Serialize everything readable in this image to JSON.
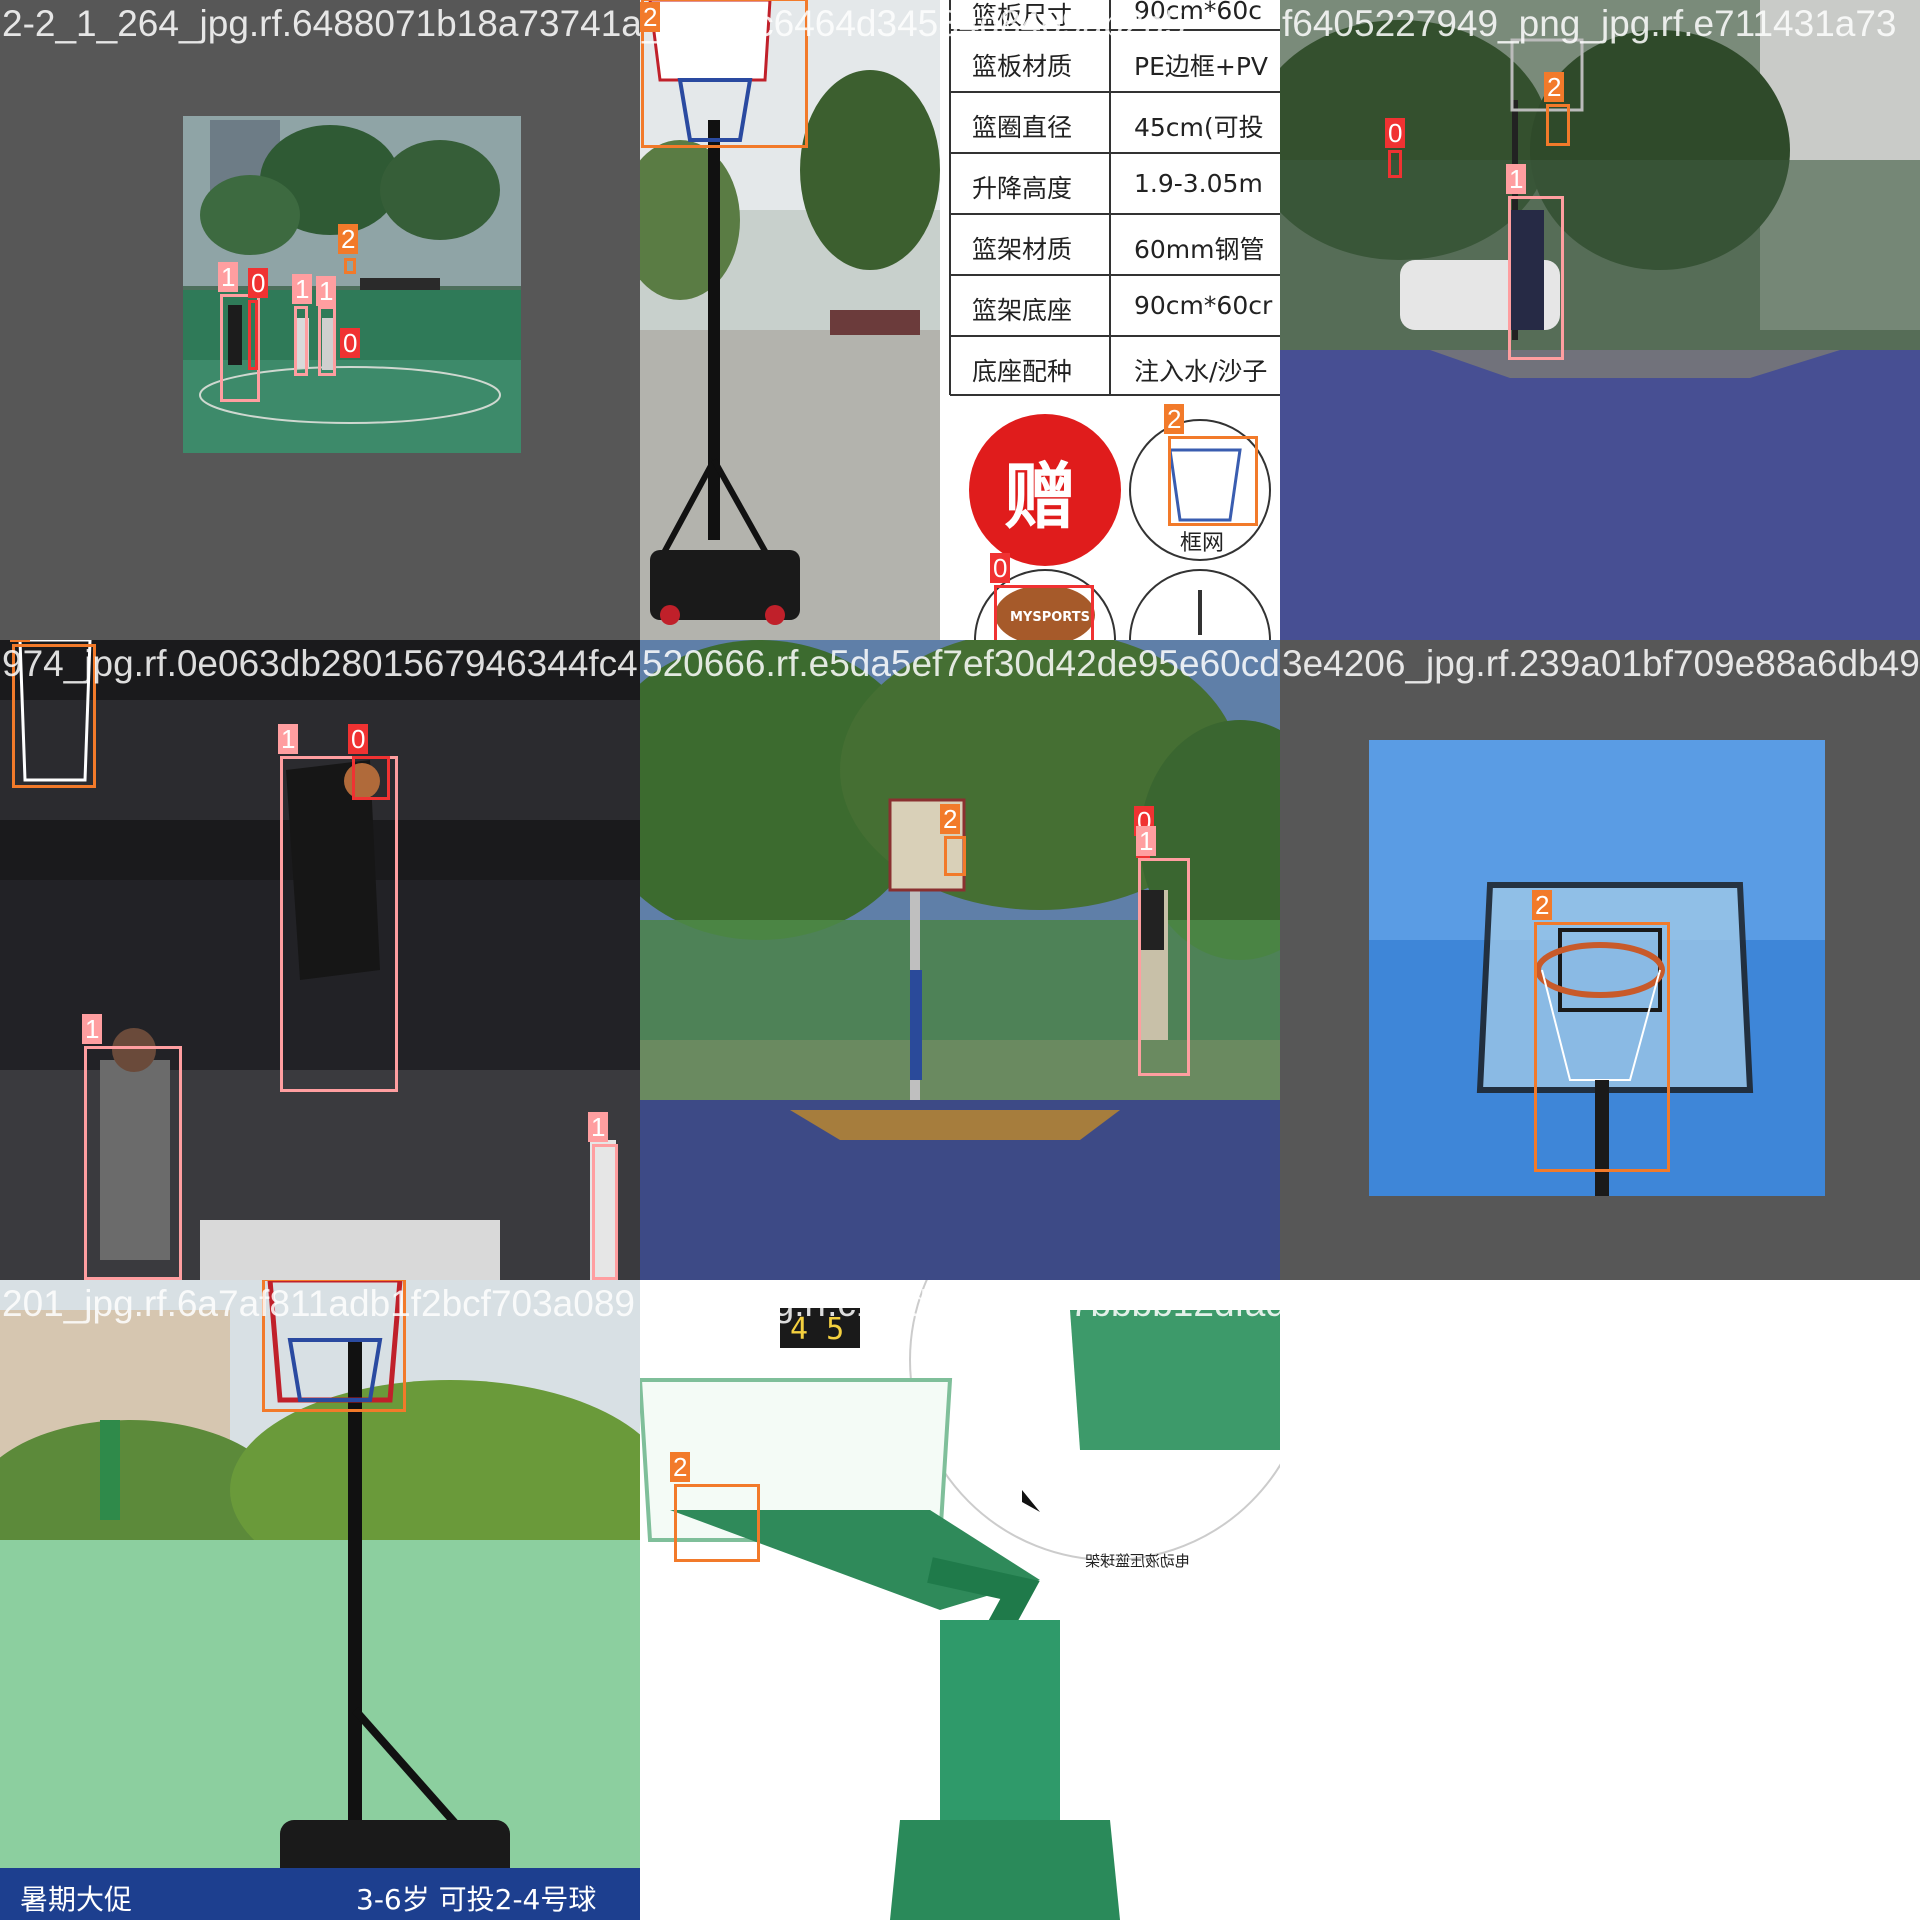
{
  "colors": {
    "class_0": "#f03232",
    "class_1": "#ff9ea0",
    "class_2": "#f27a2a",
    "pad": "#575757"
  },
  "tiles": [
    {
      "filename": "2-2_1_264_jpg.rf.6488071b18a73741a7fb38c",
      "labels": [
        "1",
        "0",
        "1",
        "1",
        "2",
        "0"
      ]
    },
    {
      "filename": "_jpg.rf.c6464d34584d8409ab2a5",
      "labels": [
        "2",
        "2",
        "0"
      ],
      "specs": [
        [
          "篮板尺寸",
          "90cm*60c"
        ],
        [
          "篮板材质",
          "PE边框+PV"
        ],
        [
          "篮圈直径",
          "45cm(可投"
        ],
        [
          "升降高度",
          "1.9-3.05m"
        ],
        [
          "篮架材质",
          "60mm钢管"
        ],
        [
          "篮架底座",
          "90cm*60cr"
        ],
        [
          "底座配种",
          "注入水/沙子"
        ]
      ],
      "gift_text": "赠",
      "net_caption": "框网",
      "ball_text": "MYSPORTS"
    },
    {
      "filename": "f6405227949_png_jpg.rf.e711431a73",
      "labels": [
        "0",
        "2",
        "1"
      ]
    },
    {
      "filename": "974_jpg.rf.0e063db2801567946344fc4",
      "labels": [
        "2",
        "1",
        "0",
        "1",
        "1"
      ]
    },
    {
      "filename": "520666.rf.e5da5ef7ef30d42de95e60cdde4d",
      "labels": [
        "2",
        "0",
        "1"
      ]
    },
    {
      "filename": "3e4206_jpg.rf.239a01bf709e88a6db49",
      "labels": [
        "2"
      ]
    },
    {
      "filename": "201_jpg.rf.6a7af811adb1f2bcf703a089",
      "labels": [
        "2"
      ],
      "banner_left": "暑期大促",
      "banner_right": "3-6岁 可投2-4号球"
    },
    {
      "filename": "9147_jpg.rf.c1f3dbc287e77bbbb12dfadad7b11",
      "labels": [
        "2"
      ],
      "scoreboard": "4 5",
      "product_caption": "电动液压篮球架"
    }
  ]
}
